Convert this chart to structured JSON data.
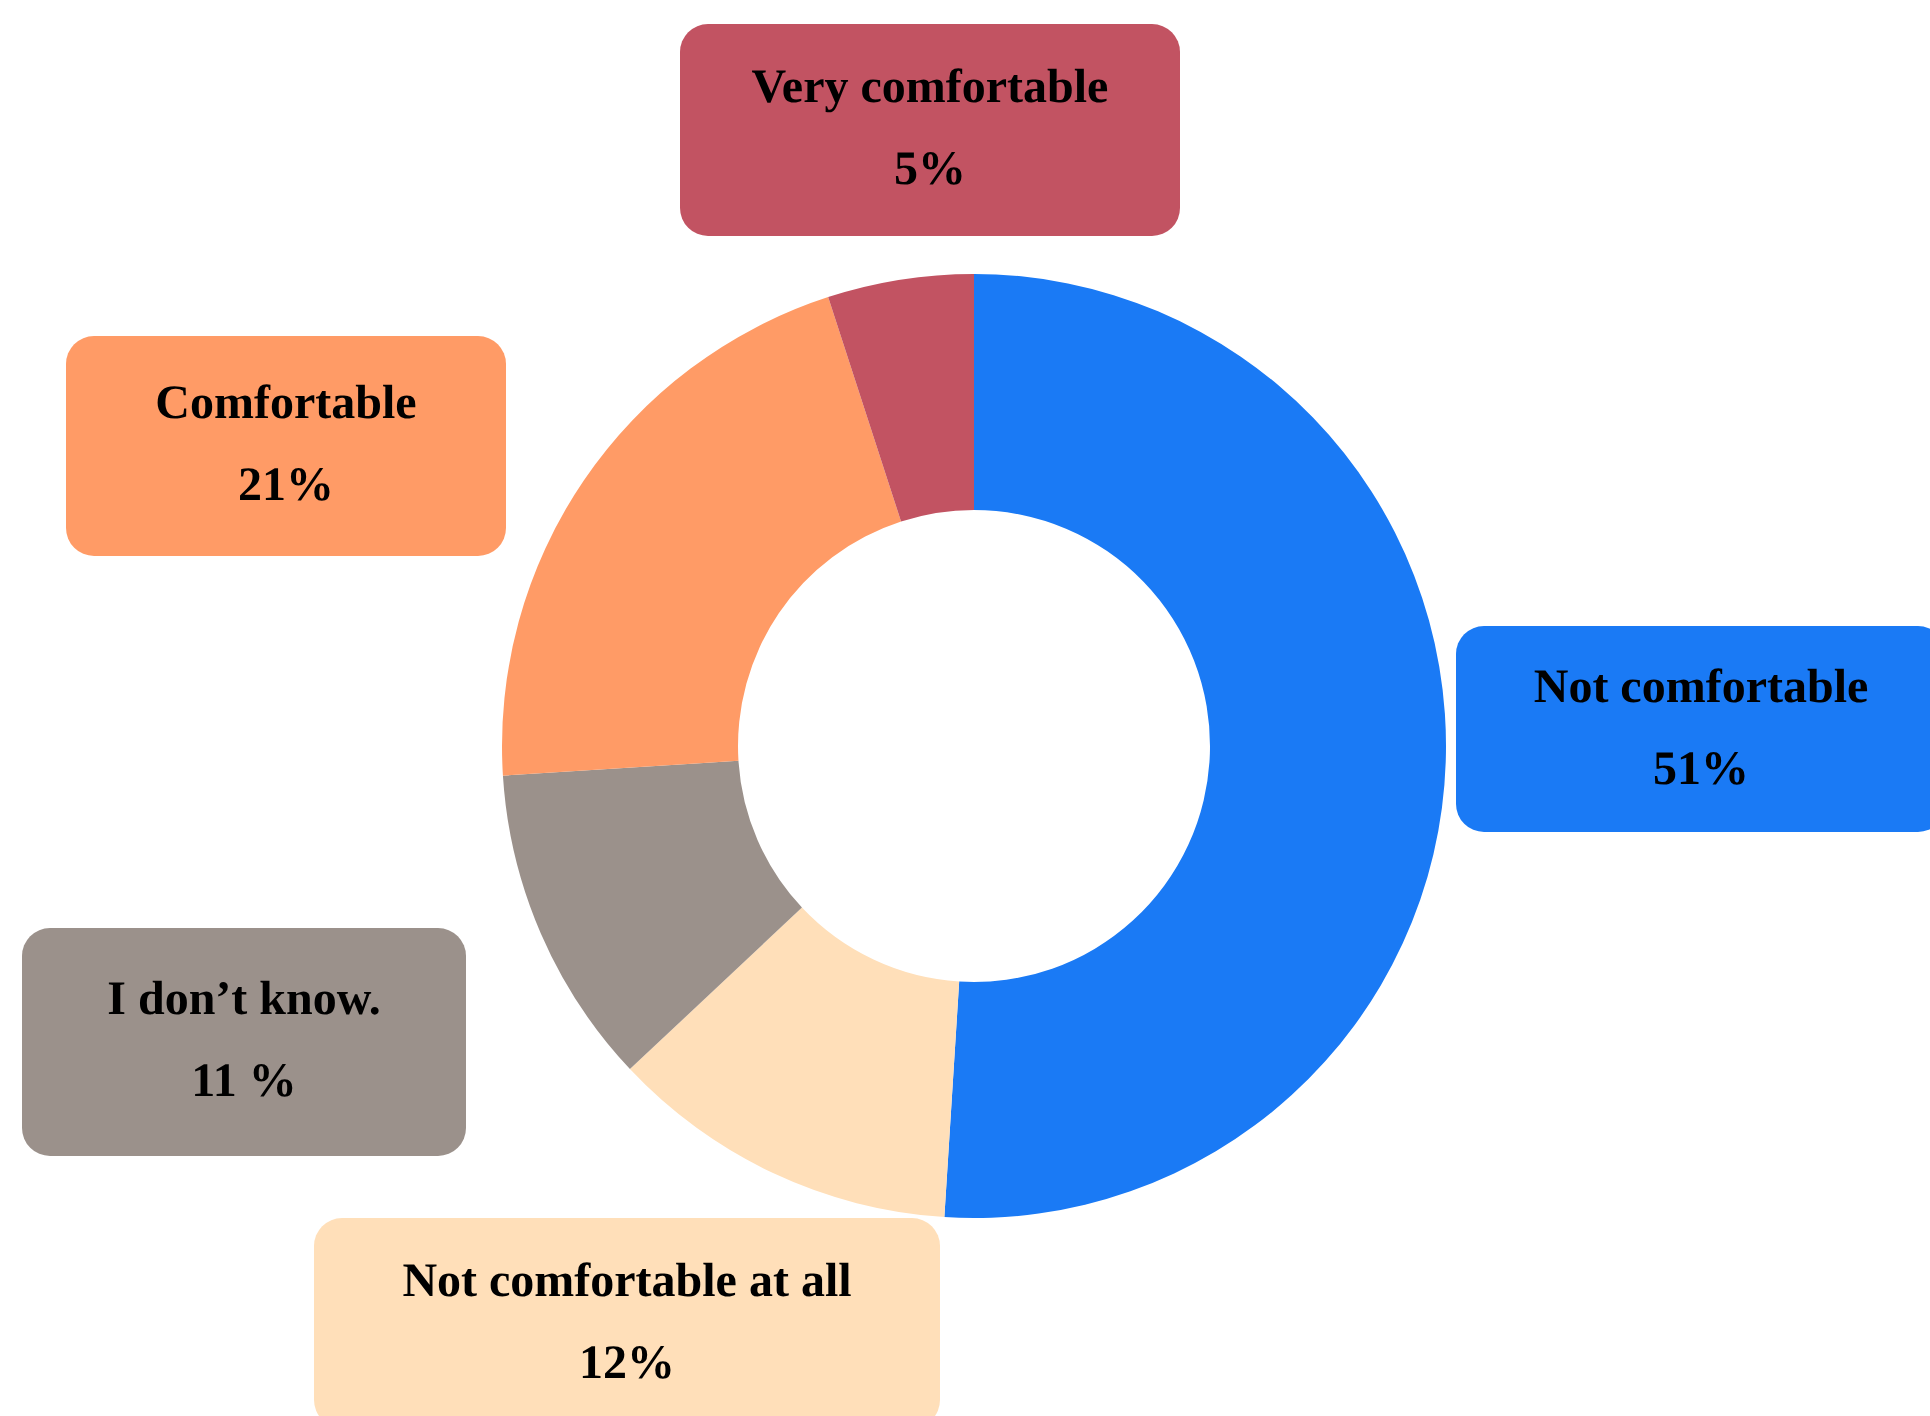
{
  "chart_data": {
    "type": "donut",
    "categories": [
      "Not comfortable",
      "Not comfortable at all",
      "I don’t know.",
      "Comfortable",
      "Very comfortable"
    ],
    "values": [
      51,
      12,
      11,
      21,
      5
    ],
    "value_labels": [
      "51%",
      "12%",
      "11 %",
      "21%",
      "5%"
    ],
    "colors": [
      "#1a7af5",
      "#ffdfb9",
      "#9b918b",
      "#ff9b66",
      "#c25362"
    ],
    "legend": false
  }
}
